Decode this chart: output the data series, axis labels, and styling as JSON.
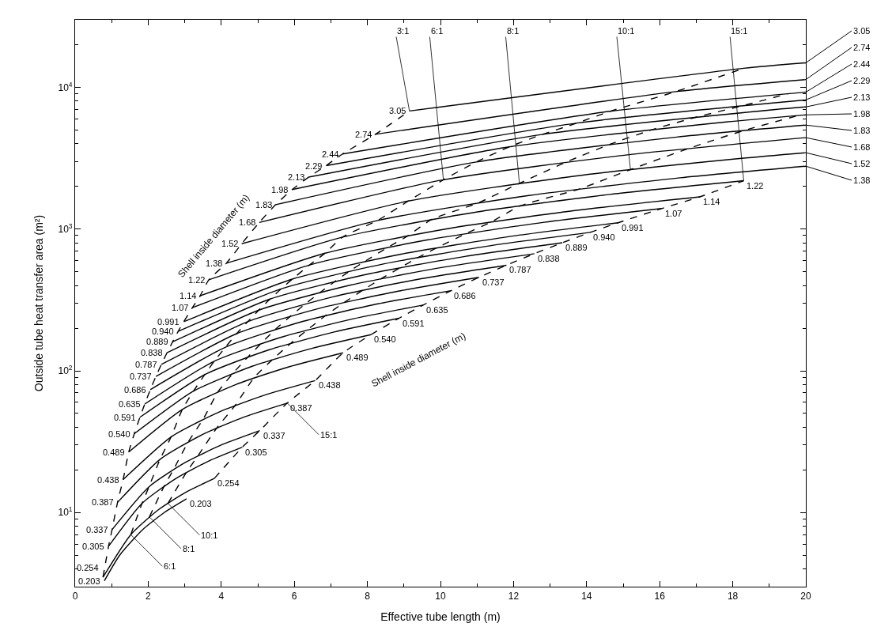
{
  "chart_data": {
    "type": "line",
    "xlabel": "Effective tube length (m)",
    "ylabel": "Outside tube heat transfer area (m²)",
    "xlim": [
      0,
      20
    ],
    "xticks": [
      0,
      2,
      4,
      6,
      8,
      10,
      12,
      14,
      16,
      18,
      20
    ],
    "ylim": [
      3,
      30000
    ],
    "log": "y",
    "yticks": [
      {
        "value": 10,
        "label": "10$^{1}$"
      },
      {
        "value": 100,
        "label": "10$^{2}$"
      },
      {
        "value": 1000,
        "label": "10$^{3}$"
      },
      {
        "value": 10000,
        "label": "10$^{4}$"
      }
    ],
    "grid": false,
    "legend": false,
    "marker": "none",
    "line_style": "solid",
    "series": [
      {
        "name": "0.203",
        "color": "#000000",
        "x": [
          0.8,
          1.22,
          1.83,
          2.44,
          3.05
        ],
        "values": [
          3.3,
          5.0,
          7.5,
          10.0,
          12.5
        ]
      },
      {
        "name": "0.254",
        "color": "#000000",
        "x": [
          0.762,
          1.524,
          2.286,
          3.048,
          3.81
        ],
        "values": [
          3.49,
          6.98,
          10.5,
          14.0,
          17.4
        ]
      },
      {
        "name": "0.305",
        "color": "#000000",
        "x": [
          0.915,
          1.83,
          2.745,
          3.66,
          4.575
        ],
        "values": [
          5.78,
          11.6,
          17.3,
          23.1,
          28.9
        ]
      },
      {
        "name": "0.337",
        "color": "#000000",
        "x": [
          1.011,
          2.022,
          3.033,
          4.044,
          5.055
        ],
        "values": [
          7.58,
          15.2,
          22.7,
          30.3,
          37.9
        ]
      },
      {
        "name": "0.387",
        "color": "#000000",
        "x": [
          1.161,
          2.322,
          3.483,
          4.644,
          5.805
        ],
        "values": [
          11.8,
          23.7,
          35.5,
          47.4,
          59.2
        ]
      },
      {
        "name": "0.438",
        "color": "#000000",
        "x": [
          1.314,
          2.628,
          3.942,
          5.256,
          6.57
        ],
        "values": [
          17.1,
          34.2,
          51.2,
          68.3,
          85.4
        ]
      },
      {
        "name": "0.489",
        "color": "#000000",
        "x": [
          1.467,
          2.934,
          4.401,
          5.868,
          7.335
        ],
        "values": [
          26.7,
          53.4,
          80.1,
          107,
          134
        ]
      },
      {
        "name": "0.540",
        "color": "#000000",
        "x": [
          1.62,
          3.24,
          4.86,
          6.48,
          8.1
        ],
        "values": [
          36.0,
          71.9,
          108,
          144,
          180
        ]
      },
      {
        "name": "0.591",
        "color": "#000000",
        "x": [
          1.773,
          3.546,
          5.319,
          7.092,
          8.865
        ],
        "values": [
          47.0,
          94.0,
          141,
          188,
          235
        ]
      },
      {
        "name": "0.635",
        "color": "#000000",
        "x": [
          1.905,
          3.81,
          5.715,
          7.62,
          9.525
        ],
        "values": [
          58.3,
          117,
          175,
          233,
          291
        ]
      },
      {
        "name": "0.686",
        "color": "#000000",
        "x": [
          2.058,
          4.116,
          6.174,
          8.232,
          10.29
        ],
        "values": [
          73.7,
          147,
          221,
          295,
          368
        ]
      },
      {
        "name": "0.737",
        "color": "#000000",
        "x": [
          2.211,
          4.422,
          6.633,
          8.844,
          11.055
        ],
        "values": [
          91.3,
          183,
          274,
          365,
          457
        ]
      },
      {
        "name": "0.787",
        "color": "#000000",
        "x": [
          2.361,
          4.722,
          7.083,
          9.444,
          11.805
        ],
        "values": [
          111,
          222,
          334,
          445,
          556
        ]
      },
      {
        "name": "0.838",
        "color": "#000000",
        "x": [
          2.514,
          5.028,
          7.542,
          10.056,
          12.57
        ],
        "values": [
          134,
          268,
          403,
          537,
          671
        ]
      },
      {
        "name": "0.889",
        "color": "#000000",
        "x": [
          2.667,
          5.334,
          8.001,
          10.668,
          13.335
        ],
        "values": [
          160,
          321,
          481,
          641,
          801
        ]
      },
      {
        "name": "0.940",
        "color": "#000000",
        "x": [
          2.82,
          5.64,
          8.46,
          11.28,
          14.1
        ],
        "values": [
          190,
          379,
          569,
          758,
          948
        ]
      },
      {
        "name": "0.991",
        "color": "#000000",
        "x": [
          2.973,
          5.946,
          8.919,
          11.892,
          14.865
        ],
        "values": [
          222,
          444,
          665,
          887,
          1109
        ]
      },
      {
        "name": "1.07",
        "color": "#000000",
        "x": [
          3.21,
          6.42,
          9.63,
          12.84,
          16.05
        ],
        "values": [
          279,
          559,
          838,
          1117,
          1396
        ]
      },
      {
        "name": "1.14",
        "color": "#000000",
        "x": [
          3.42,
          6.84,
          10.26,
          13.68,
          17.1
        ],
        "values": [
          338,
          676,
          1014,
          1352,
          1689
        ]
      },
      {
        "name": "1.22",
        "color": "#000000",
        "x": [
          3.66,
          7.32,
          10.98,
          14.64,
          18.3
        ],
        "values": [
          439,
          878,
          1318,
          1757,
          2196
        ]
      },
      {
        "name": "1.38",
        "color": "#000000",
        "x": [
          4.14,
          8.28,
          12.42,
          16.56,
          20
        ],
        "values": [
          575,
          1151,
          1726,
          2302,
          2780
        ]
      },
      {
        "name": "1.52",
        "color": "#000000",
        "x": [
          4.56,
          9.12,
          13.68,
          18.24,
          20
        ],
        "values": [
          789,
          1578,
          2367,
          3156,
          3460
        ]
      },
      {
        "name": "1.68",
        "color": "#000000",
        "x": [
          5.04,
          10.08,
          15.12,
          20
        ],
        "values": [
          1114,
          2228,
          3342,
          4420
        ]
      },
      {
        "name": "1.83",
        "color": "#000000",
        "x": [
          5.49,
          10.98,
          16.47,
          20
        ],
        "values": [
          1488,
          2976,
          4463,
          5420
        ]
      },
      {
        "name": "1.98",
        "color": "#000000",
        "x": [
          5.94,
          11.88,
          17.82,
          20
        ],
        "values": [
          1901,
          3802,
          5702,
          6400
        ]
      },
      {
        "name": "2.13",
        "color": "#000000",
        "x": [
          6.39,
          12.78,
          19.17,
          20
        ],
        "values": [
          2326,
          4652,
          6978,
          7280
        ]
      },
      {
        "name": "2.29",
        "color": "#000000",
        "x": [
          6.87,
          13.74,
          20
        ],
        "values": [
          2803,
          5606,
          8160
        ]
      },
      {
        "name": "2.44",
        "color": "#000000",
        "x": [
          7.32,
          14.64,
          20
        ],
        "values": [
          3389,
          6778,
          9260
        ]
      },
      {
        "name": "2.74",
        "color": "#000000",
        "x": [
          8.22,
          16.44,
          20
        ],
        "values": [
          4669,
          9338,
          11360
        ]
      },
      {
        "name": "3.05",
        "color": "#000000",
        "x": [
          9.15,
          18.3,
          20
        ],
        "values": [
          6817,
          13634,
          14900
        ]
      },
      {
        "color": "#000000",
        "line_style": "dashed",
        "x": [
          0.762,
          0.915,
          1.011,
          1.161,
          1.314,
          1.467,
          1.62,
          1.773,
          1.905,
          2.058,
          2.211,
          2.361,
          2.514,
          2.667,
          2.82,
          2.973,
          3.21,
          3.42,
          3.66,
          4.14,
          4.56,
          5.04,
          5.49,
          5.94,
          6.39,
          6.87,
          7.32,
          8.22,
          9.15
        ],
        "values": [
          3.49,
          5.78,
          7.58,
          11.8,
          17.1,
          26.7,
          36.0,
          47.0,
          58.3,
          73.7,
          91.3,
          111,
          134,
          160,
          190,
          222,
          279,
          338,
          439,
          575,
          789,
          1114,
          1488,
          1901,
          2326,
          2803,
          3389,
          4669,
          6817
        ]
      },
      {
        "color": "#000000",
        "line_style": "dashed",
        "x": [
          1.524,
          1.83,
          2.022,
          2.322,
          2.628,
          2.934,
          3.24,
          3.546,
          3.81,
          4.116,
          4.422,
          4.722,
          5.028,
          5.334,
          5.64,
          5.946,
          6.42,
          6.84,
          7.32,
          8.28,
          9.12,
          10.08,
          10.98,
          11.88,
          12.78,
          13.74,
          14.64,
          16.44,
          18.3
        ],
        "values": [
          6.98,
          11.6,
          15.2,
          23.7,
          34.2,
          53.4,
          71.9,
          94.0,
          117,
          147,
          183,
          222,
          268,
          321,
          379,
          444,
          559,
          676,
          878,
          1151,
          1578,
          2228,
          2976,
          3802,
          4652,
          5606,
          6778,
          9338,
          13634
        ]
      },
      {
        "color": "#000000",
        "line_style": "dashed",
        "x": [
          2.032,
          2.44,
          2.696,
          3.096,
          3.504,
          3.912,
          4.32,
          4.728,
          5.08,
          5.488,
          5.896,
          6.296,
          6.704,
          7.112,
          7.52,
          7.928,
          8.56,
          9.12,
          9.76,
          11.04,
          12.16,
          13.44,
          14.64,
          15.84,
          17.04,
          18.32,
          19.52
        ],
        "values": [
          9.31,
          15.4,
          20.2,
          31.5,
          45.6,
          71.2,
          96.0,
          125,
          155,
          197,
          243,
          296,
          357,
          427,
          507,
          592,
          744,
          901,
          1171,
          1533,
          2104,
          2971,
          3968,
          5069,
          6203,
          7475,
          9037
        ]
      },
      {
        "color": "#000000",
        "line_style": "dashed",
        "x": [
          2.54,
          3.05,
          3.37,
          3.87,
          4.38,
          4.89,
          5.4,
          5.91,
          6.35,
          6.86,
          7.37,
          7.87,
          8.38,
          8.89,
          9.4,
          9.91,
          10.7,
          11.4,
          12.2,
          13.8,
          15.2,
          16.8,
          18.3,
          19.8
        ],
        "values": [
          11.6,
          19.3,
          25.3,
          39.3,
          57.0,
          89.0,
          120,
          157,
          194,
          246,
          304,
          370,
          447,
          533,
          633,
          740,
          930,
          1127,
          1463,
          1917,
          2630,
          3713,
          4960,
          6337
        ]
      },
      {
        "color": "#000000",
        "line_style": "dashed",
        "x": [
          3.81,
          4.575,
          5.055,
          5.805,
          6.57,
          7.335,
          8.1,
          8.865,
          9.525,
          10.29,
          11.055,
          11.805,
          12.57,
          13.335,
          14.1,
          14.865,
          16.05,
          17.1,
          18.3
        ],
        "values": [
          17.4,
          28.9,
          37.9,
          59.2,
          85.4,
          134,
          180,
          235,
          291,
          368,
          457,
          556,
          671,
          801,
          948,
          1109,
          1396,
          1689,
          2196
        ]
      }
    ],
    "annotations": [
      "Shell inside diameter (m)",
      "Shell inside diameter (m)",
      {
        "text": "3:1",
        "x": 9.15,
        "y": 6817
      },
      {
        "text": "6:1",
        "x": 10.08,
        "y": 2228
      },
      {
        "text": "8:1",
        "x": 12.16,
        "y": 2104
      },
      {
        "text": "10:1",
        "x": 15.2,
        "y": 2630
      },
      {
        "text": "15:1",
        "x": 18.3,
        "y": 2196
      },
      {
        "text": "15:1",
        "x": 5.805,
        "y": 59.2
      },
      {
        "text": "10:1",
        "x": 2.54,
        "y": 11.6
      },
      {
        "text": "8:1",
        "x": 2.032,
        "y": 9.31
      },
      {
        "text": "6:1",
        "x": 1.524,
        "y": 6.98
      }
    ]
  }
}
